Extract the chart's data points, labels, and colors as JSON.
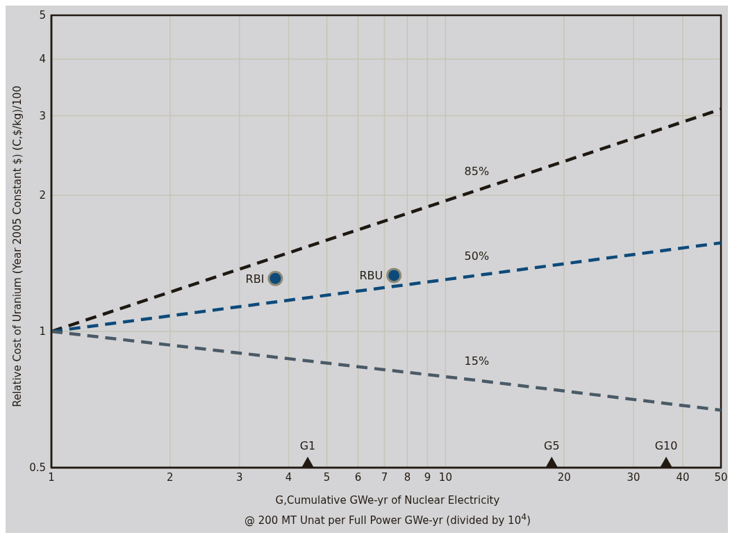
{
  "chart_data": {
    "type": "line",
    "xlabel": "G,Cumulative GWe-yr of Nuclear Electricity\n@ 200 MT Unat per Full Power GWe-yr (divided by 10$^{4}$)",
    "ylabel": "Relative Cost of Uranium (Year 2005 Constant $) (C,$/kg)/100",
    "log": "xy",
    "xlim": [
      1,
      50
    ],
    "ylim": [
      0.5,
      5
    ],
    "xticks": [
      1,
      2,
      3,
      4,
      5,
      6,
      7,
      8,
      9,
      10,
      20,
      30,
      40,
      50
    ],
    "yticks": [
      0.5,
      1,
      2,
      3,
      4,
      5
    ],
    "grid": true,
    "line_style": "dashed",
    "marker": "none",
    "series": [
      {
        "name": "85%",
        "color": "#1e1812",
        "x": [
          1,
          12,
          50
        ],
        "values": [
          1,
          2.05,
          3.1
        ]
      },
      {
        "name": "50%",
        "color": "#0d4a7a",
        "x": [
          1,
          12,
          50
        ],
        "values": [
          1,
          1.33,
          1.57
        ]
      },
      {
        "name": "15%",
        "color": "#4a5a66",
        "x": [
          1,
          12,
          50
        ],
        "values": [
          1,
          0.78,
          0.67
        ]
      },
      {
        "name": "RBI",
        "type": "scatter",
        "color": "#0d4a7a",
        "x": [
          3.7
        ],
        "values": [
          1.31
        ],
        "marker": "circle"
      },
      {
        "name": "RBU",
        "type": "scatter",
        "color": "#0d4a7a",
        "x": [
          7.4
        ],
        "values": [
          1.33
        ],
        "marker": "circle"
      },
      {
        "type": "scatter",
        "color": "#221a12",
        "x": [
          4.47,
          18.6,
          36.3
        ],
        "values": [
          0.514,
          0.514,
          0.514
        ],
        "marker": "triangle",
        "value_labels": [
          "G1",
          "G5",
          "G10"
        ]
      }
    ]
  }
}
